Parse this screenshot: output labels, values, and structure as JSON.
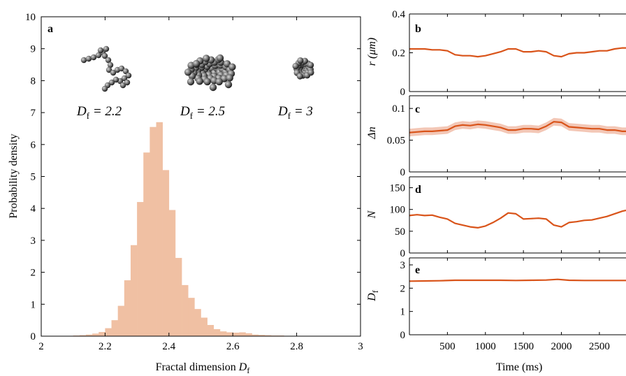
{
  "colors": {
    "histogram": "#f0c0a3",
    "line": "#d9541a",
    "band": "#f3c7b6",
    "axes": "#000000"
  },
  "chart_data": [
    {
      "type": "bar",
      "panel": "a",
      "xlabel": "Fractal dimension",
      "xlabel_symbol": "D",
      "xlabel_sub": "f",
      "ylabel": "Probability density",
      "xlim": [
        2,
        3
      ],
      "ylim": [
        0,
        10
      ],
      "xticks": [
        "2",
        "2.2",
        "2.4",
        "2.6",
        "2.8",
        "3"
      ],
      "yticks": [
        "0",
        "1",
        "2",
        "3",
        "4",
        "5",
        "6",
        "7",
        "8",
        "9",
        "10"
      ],
      "bin_width": 0.02,
      "bins": [
        {
          "x": 2.08,
          "y": 0.01
        },
        {
          "x": 2.1,
          "y": 0.02
        },
        {
          "x": 2.12,
          "y": 0.03
        },
        {
          "x": 2.14,
          "y": 0.05
        },
        {
          "x": 2.16,
          "y": 0.08
        },
        {
          "x": 2.18,
          "y": 0.13
        },
        {
          "x": 2.2,
          "y": 0.25
        },
        {
          "x": 2.22,
          "y": 0.5
        },
        {
          "x": 2.24,
          "y": 0.95
        },
        {
          "x": 2.26,
          "y": 1.75
        },
        {
          "x": 2.28,
          "y": 2.85
        },
        {
          "x": 2.3,
          "y": 4.2
        },
        {
          "x": 2.32,
          "y": 5.75
        },
        {
          "x": 2.34,
          "y": 6.55
        },
        {
          "x": 2.36,
          "y": 6.7
        },
        {
          "x": 2.38,
          "y": 5.2
        },
        {
          "x": 2.4,
          "y": 3.95
        },
        {
          "x": 2.42,
          "y": 2.45
        },
        {
          "x": 2.44,
          "y": 1.6
        },
        {
          "x": 2.46,
          "y": 1.2
        },
        {
          "x": 2.48,
          "y": 0.85
        },
        {
          "x": 2.5,
          "y": 0.58
        },
        {
          "x": 2.52,
          "y": 0.35
        },
        {
          "x": 2.54,
          "y": 0.22
        },
        {
          "x": 2.56,
          "y": 0.15
        },
        {
          "x": 2.58,
          "y": 0.12
        },
        {
          "x": 2.6,
          "y": 0.11
        },
        {
          "x": 2.62,
          "y": 0.12
        },
        {
          "x": 2.64,
          "y": 0.09
        },
        {
          "x": 2.66,
          "y": 0.05
        },
        {
          "x": 2.68,
          "y": 0.04
        },
        {
          "x": 2.7,
          "y": 0.03
        },
        {
          "x": 2.72,
          "y": 0.02
        },
        {
          "x": 2.74,
          "y": 0.02
        },
        {
          "x": 2.76,
          "y": 0.01
        },
        {
          "x": 2.78,
          "y": 0.01
        },
        {
          "x": 2.8,
          "y": 0.01
        },
        {
          "x": 2.82,
          "y": 0.01
        },
        {
          "x": 2.86,
          "y": 0.01
        },
        {
          "x": 2.9,
          "y": 0.01
        },
        {
          "x": 2.94,
          "y": 0.01
        }
      ],
      "insets": [
        {
          "name": "cluster-2.2",
          "df_value": "2.2",
          "label": "D",
          "sub": "f",
          "eq": " = 2.2"
        },
        {
          "name": "cluster-2.5",
          "df_value": "2.5",
          "label": "D",
          "sub": "f",
          "eq": " = 2.5"
        },
        {
          "name": "cluster-3",
          "df_value": "3",
          "label": "D",
          "sub": "f",
          "eq": " = 3"
        }
      ]
    },
    {
      "type": "line",
      "panel": "b",
      "ylabel": "r (μm)",
      "ylim": [
        0,
        0.4
      ],
      "yticks": [
        "0",
        "0.2",
        "0.4"
      ],
      "xlim": [
        0,
        2850
      ],
      "x": [
        0,
        100,
        200,
        300,
        400,
        500,
        600,
        700,
        800,
        900,
        1000,
        1100,
        1200,
        1300,
        1400,
        1500,
        1600,
        1700,
        1800,
        1900,
        2000,
        2100,
        2200,
        2300,
        2400,
        2500,
        2600,
        2700,
        2800,
        2850
      ],
      "series": [
        {
          "values": [
            0.22,
            0.22,
            0.22,
            0.215,
            0.215,
            0.21,
            0.19,
            0.185,
            0.185,
            0.18,
            0.185,
            0.195,
            0.205,
            0.22,
            0.22,
            0.205,
            0.205,
            0.21,
            0.205,
            0.185,
            0.18,
            0.195,
            0.2,
            0.2,
            0.205,
            0.21,
            0.21,
            0.22,
            0.225,
            0.225
          ]
        }
      ]
    },
    {
      "type": "line",
      "panel": "c",
      "ylabel": "Δn",
      "ylim": [
        0,
        0.12
      ],
      "yticks": [
        "0",
        "0.05",
        "0.1"
      ],
      "xlim": [
        0,
        2850
      ],
      "x": [
        0,
        100,
        200,
        300,
        400,
        500,
        600,
        700,
        800,
        900,
        1000,
        1100,
        1200,
        1300,
        1400,
        1500,
        1600,
        1700,
        1800,
        1900,
        2000,
        2100,
        2200,
        2300,
        2400,
        2500,
        2600,
        2700,
        2800,
        2850
      ],
      "series": [
        {
          "values": [
            0.062,
            0.063,
            0.064,
            0.064,
            0.065,
            0.066,
            0.072,
            0.074,
            0.073,
            0.075,
            0.074,
            0.072,
            0.07,
            0.066,
            0.066,
            0.068,
            0.068,
            0.067,
            0.072,
            0.079,
            0.078,
            0.071,
            0.07,
            0.069,
            0.068,
            0.068,
            0.066,
            0.066,
            0.064,
            0.064
          ]
        }
      ],
      "band_halfwidth": 0.006
    },
    {
      "type": "line",
      "panel": "d",
      "ylabel": "N",
      "ylim": [
        0,
        175
      ],
      "yticks": [
        "0",
        "50",
        "100",
        "150"
      ],
      "xlim": [
        0,
        2850
      ],
      "x": [
        0,
        100,
        200,
        300,
        400,
        500,
        600,
        700,
        800,
        900,
        1000,
        1100,
        1200,
        1300,
        1400,
        1500,
        1600,
        1700,
        1800,
        1900,
        2000,
        2100,
        2200,
        2300,
        2400,
        2500,
        2600,
        2700,
        2800,
        2850
      ],
      "series": [
        {
          "values": [
            86,
            88,
            86,
            87,
            82,
            78,
            68,
            64,
            60,
            58,
            62,
            70,
            80,
            92,
            90,
            78,
            79,
            80,
            78,
            64,
            60,
            70,
            72,
            75,
            76,
            80,
            84,
            90,
            96,
            98
          ]
        }
      ]
    },
    {
      "type": "line",
      "panel": "e",
      "ylabel": "D",
      "ylabel_sub": "f",
      "ylim": [
        0,
        3.3
      ],
      "yticks": [
        "0",
        "1",
        "2",
        "3"
      ],
      "xlim": [
        0,
        2850
      ],
      "xlabel": "Time (ms)",
      "xticks": [
        "500",
        "1000",
        "1500",
        "2000",
        "2500"
      ],
      "x": [
        0,
        200,
        400,
        600,
        800,
        1000,
        1200,
        1400,
        1600,
        1800,
        1950,
        2100,
        2300,
        2500,
        2700,
        2850
      ],
      "series": [
        {
          "values": [
            2.3,
            2.31,
            2.32,
            2.34,
            2.34,
            2.34,
            2.34,
            2.33,
            2.34,
            2.35,
            2.38,
            2.34,
            2.33,
            2.33,
            2.33,
            2.33
          ]
        }
      ]
    }
  ]
}
